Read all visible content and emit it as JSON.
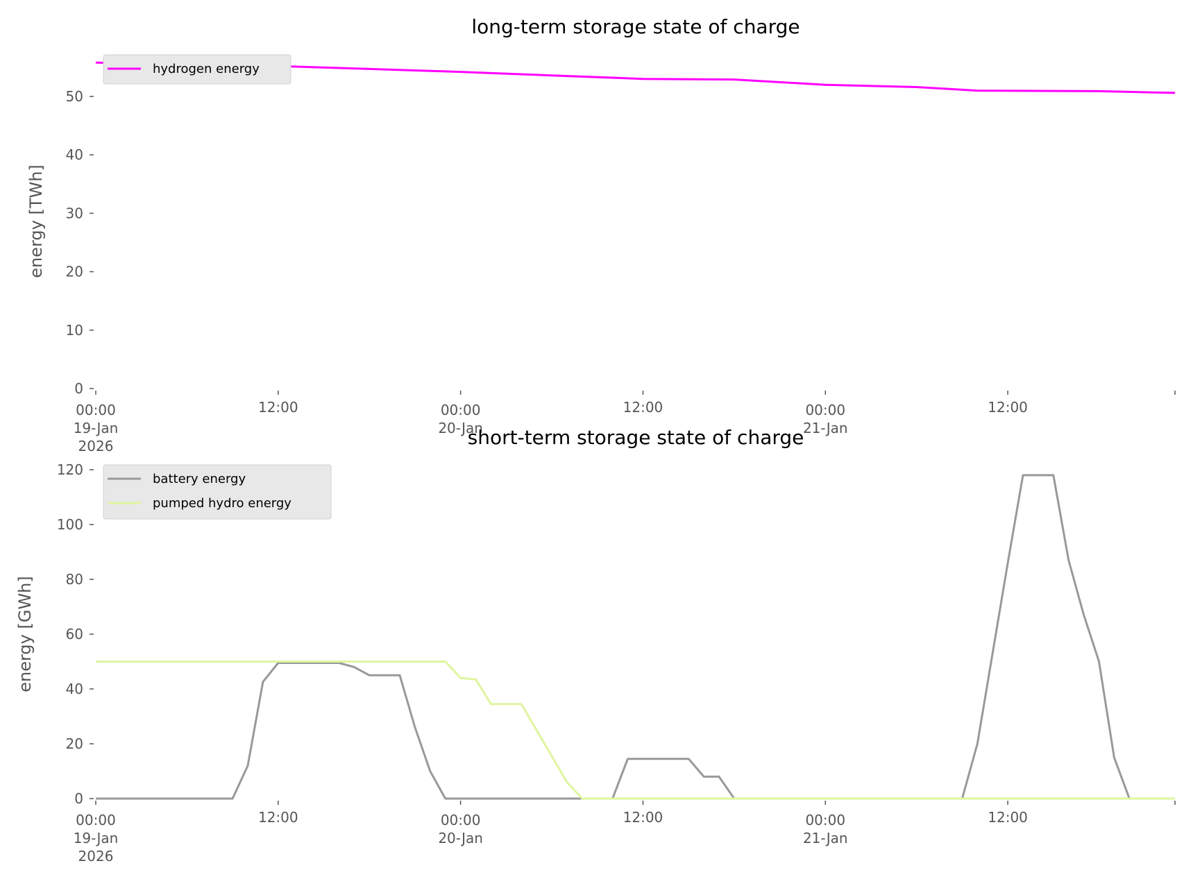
{
  "chart_data": [
    {
      "type": "line",
      "title": "long-term storage state of charge",
      "xlabel": "",
      "ylabel": "energy [TWh]",
      "x_unit": "hours since 00:00 19-Jan 2026",
      "xlim": [
        0,
        71
      ],
      "ylim": [
        0,
        56.5
      ],
      "yticks": [
        0,
        10,
        20,
        30,
        40,
        50
      ],
      "xticks": [
        {
          "hour": 0,
          "lines": [
            "00:00",
            "19-Jan",
            "2026"
          ]
        },
        {
          "hour": 12,
          "lines": [
            "12:00"
          ]
        },
        {
          "hour": 24,
          "lines": [
            "00:00",
            "20-Jan"
          ]
        },
        {
          "hour": 36,
          "lines": [
            "12:00"
          ]
        },
        {
          "hour": 48,
          "lines": [
            "00:00",
            "21-Jan"
          ]
        },
        {
          "hour": 60,
          "lines": [
            "12:00"
          ]
        },
        {
          "hour": 71,
          "lines": []
        }
      ],
      "grid": false,
      "legend_position": "top-left",
      "series": [
        {
          "name": "hydrogen energy",
          "color": "#ff00ff",
          "x": [
            0,
            6,
            12,
            18,
            24,
            30,
            36,
            42,
            48,
            54,
            58,
            66,
            71
          ],
          "y": [
            55.8,
            55.5,
            55.2,
            54.7,
            54.2,
            53.6,
            53.0,
            52.9,
            52.0,
            51.6,
            51.0,
            50.9,
            50.6
          ]
        }
      ]
    },
    {
      "type": "line",
      "title": "short-term storage state of charge",
      "xlabel": "",
      "ylabel": "energy [GWh]",
      "x_unit": "hours since 00:00 19-Jan 2026",
      "xlim": [
        0,
        71
      ],
      "ylim": [
        0,
        120
      ],
      "yticks": [
        0,
        20,
        40,
        60,
        80,
        100,
        120
      ],
      "xticks": [
        {
          "hour": 0,
          "lines": [
            "00:00",
            "19-Jan",
            "2026"
          ]
        },
        {
          "hour": 12,
          "lines": [
            "12:00"
          ]
        },
        {
          "hour": 24,
          "lines": [
            "00:00",
            "20-Jan"
          ]
        },
        {
          "hour": 36,
          "lines": [
            "12:00"
          ]
        },
        {
          "hour": 48,
          "lines": [
            "00:00",
            "21-Jan"
          ]
        },
        {
          "hour": 60,
          "lines": [
            "12:00"
          ]
        },
        {
          "hour": 71,
          "lines": []
        }
      ],
      "grid": false,
      "legend_position": "top-left",
      "series": [
        {
          "name": "battery energy",
          "color": "#999999",
          "x": [
            0,
            9,
            10,
            11,
            12,
            16,
            17,
            18,
            20,
            21,
            22,
            23,
            34,
            35,
            39,
            40,
            41,
            42,
            57,
            58,
            59,
            60,
            61,
            63,
            64,
            65,
            66,
            67,
            68,
            71
          ],
          "y": [
            0,
            0,
            12,
            42.6,
            49.5,
            49.5,
            48,
            45,
            45,
            26,
            10,
            0,
            0,
            14.5,
            14.5,
            8,
            8,
            0,
            0,
            20,
            53,
            86,
            118,
            118,
            87,
            67,
            50,
            15,
            0,
            0
          ]
        },
        {
          "name": "pumped hydro energy",
          "color": "#dff5a0",
          "x": [
            0,
            23,
            24,
            25,
            26,
            28,
            29,
            30,
            31,
            32,
            71
          ],
          "y": [
            50,
            50,
            44,
            43.5,
            34.5,
            34.5,
            25,
            15.5,
            6,
            0,
            0
          ]
        }
      ]
    }
  ]
}
